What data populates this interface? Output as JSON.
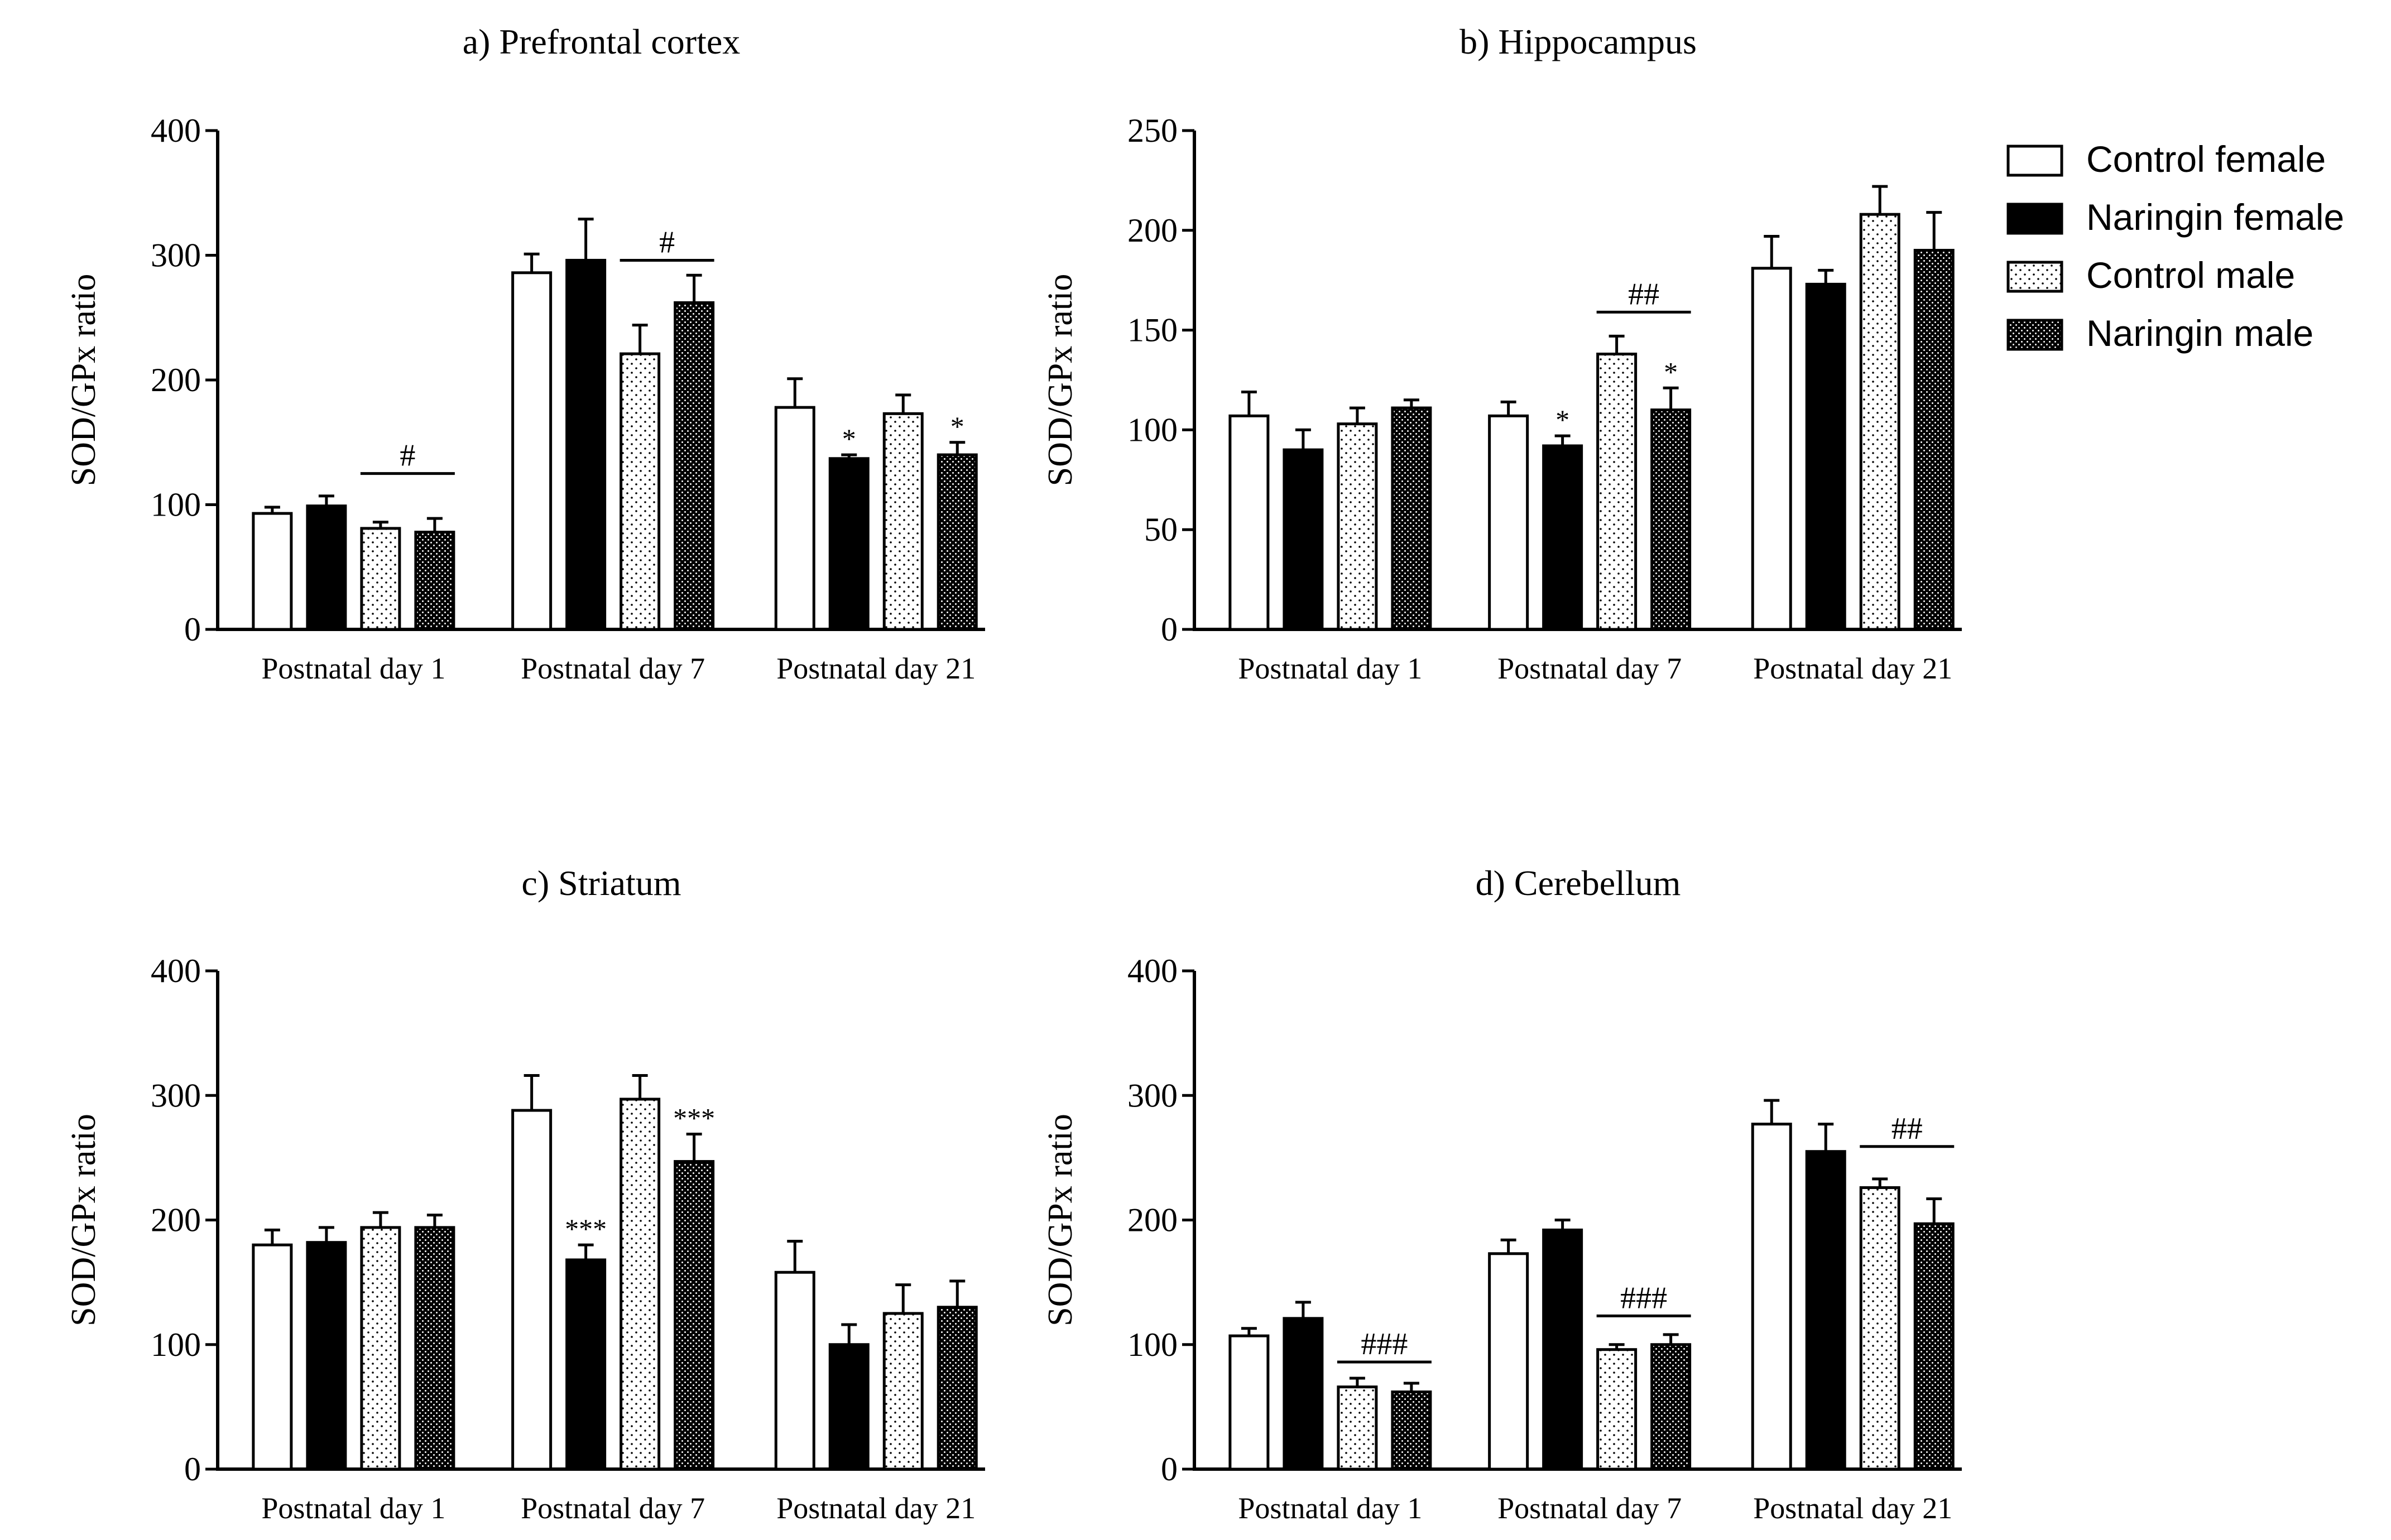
{
  "legend": {
    "entries": [
      {
        "name": "Control female",
        "pattern": "white"
      },
      {
        "name": "Naringin female",
        "pattern": "black"
      },
      {
        "name": "Control male",
        "pattern": "dots"
      },
      {
        "name": "Naringin male",
        "pattern": "dense-dots"
      }
    ]
  },
  "colors": {
    "ink": "#000000",
    "paper": "#ffffff"
  },
  "chart_data": [
    {
      "type": "bar",
      "title": "a) Prefrontal cortex",
      "ylabel": "SOD/GPx ratio",
      "xlabel": "",
      "ylim": [
        0,
        400
      ],
      "yticks": [
        0,
        100,
        200,
        300,
        400
      ],
      "categories": [
        "Postnatal day 1",
        "Postnatal day 7",
        "Postnatal day 21"
      ],
      "series": [
        {
          "name": "Control female",
          "values": [
            93,
            286,
            178
          ],
          "errors": [
            5,
            15,
            23
          ]
        },
        {
          "name": "Naringin female",
          "values": [
            99,
            296,
            137
          ],
          "errors": [
            8,
            33,
            3
          ]
        },
        {
          "name": "Control male",
          "values": [
            81,
            221,
            173
          ],
          "errors": [
            5,
            23,
            15
          ]
        },
        {
          "name": "Naringin male",
          "values": [
            78,
            262,
            140
          ],
          "errors": [
            11,
            22,
            10
          ]
        }
      ],
      "stars": [
        {
          "group": 2,
          "series": 1,
          "text": "*"
        },
        {
          "group": 2,
          "series": 3,
          "text": "*"
        }
      ],
      "brackets": [
        {
          "group": 0,
          "text": "#",
          "level": 125
        },
        {
          "group": 1,
          "text": "#",
          "level": 296
        }
      ]
    },
    {
      "type": "bar",
      "title": "b) Hippocampus",
      "ylabel": "SOD/GPx ratio",
      "xlabel": "",
      "ylim": [
        0,
        250
      ],
      "yticks": [
        0,
        50,
        100,
        150,
        200,
        250
      ],
      "categories": [
        "Postnatal day 1",
        "Postnatal day 7",
        "Postnatal day 21"
      ],
      "series": [
        {
          "name": "Control female",
          "values": [
            107,
            107,
            181
          ],
          "errors": [
            12,
            7,
            16
          ]
        },
        {
          "name": "Naringin female",
          "values": [
            90,
            92,
            173
          ],
          "errors": [
            10,
            5,
            7
          ]
        },
        {
          "name": "Control male",
          "values": [
            103,
            138,
            208
          ],
          "errors": [
            8,
            9,
            14
          ]
        },
        {
          "name": "Naringin male",
          "values": [
            111,
            110,
            190
          ],
          "errors": [
            4,
            11,
            19
          ]
        }
      ],
      "stars": [
        {
          "group": 1,
          "series": 1,
          "text": "*"
        },
        {
          "group": 1,
          "series": 3,
          "text": "*"
        }
      ],
      "brackets": [
        {
          "group": 1,
          "text": "##",
          "level": 159
        }
      ]
    },
    {
      "type": "bar",
      "title": "c) Striatum",
      "ylabel": "SOD/GPx ratio",
      "xlabel": "",
      "ylim": [
        0,
        400
      ],
      "yticks": [
        0,
        100,
        200,
        300,
        400
      ],
      "categories": [
        "Postnatal day 1",
        "Postnatal day 7",
        "Postnatal day 21"
      ],
      "series": [
        {
          "name": "Control female",
          "values": [
            180,
            288,
            158
          ],
          "errors": [
            12,
            28,
            25
          ]
        },
        {
          "name": "Naringin female",
          "values": [
            182,
            168,
            100
          ],
          "errors": [
            12,
            12,
            16
          ]
        },
        {
          "name": "Control male",
          "values": [
            194,
            297,
            125
          ],
          "errors": [
            12,
            19,
            23
          ]
        },
        {
          "name": "Naringin male",
          "values": [
            194,
            247,
            130
          ],
          "errors": [
            10,
            22,
            21
          ]
        }
      ],
      "stars": [
        {
          "group": 1,
          "series": 1,
          "text": "***"
        },
        {
          "group": 1,
          "series": 3,
          "text": "***"
        }
      ],
      "brackets": []
    },
    {
      "type": "bar",
      "title": "d) Cerebellum",
      "ylabel": "SOD/GPx ratio",
      "xlabel": "",
      "ylim": [
        0,
        400
      ],
      "yticks": [
        0,
        100,
        200,
        300,
        400
      ],
      "categories": [
        "Postnatal day 1",
        "Postnatal day 7",
        "Postnatal day 21"
      ],
      "series": [
        {
          "name": "Control female",
          "values": [
            107,
            173,
            277
          ],
          "errors": [
            6,
            11,
            19
          ]
        },
        {
          "name": "Naringin female",
          "values": [
            121,
            192,
            255
          ],
          "errors": [
            13,
            8,
            22
          ]
        },
        {
          "name": "Control male",
          "values": [
            66,
            96,
            226
          ],
          "errors": [
            7,
            4,
            7
          ]
        },
        {
          "name": "Naringin male",
          "values": [
            62,
            100,
            197
          ],
          "errors": [
            7,
            8,
            20
          ]
        }
      ],
      "stars": [],
      "brackets": [
        {
          "group": 0,
          "text": "###",
          "level": 86
        },
        {
          "group": 1,
          "text": "###",
          "level": 123
        },
        {
          "group": 2,
          "text": "##",
          "level": 259
        }
      ]
    }
  ]
}
